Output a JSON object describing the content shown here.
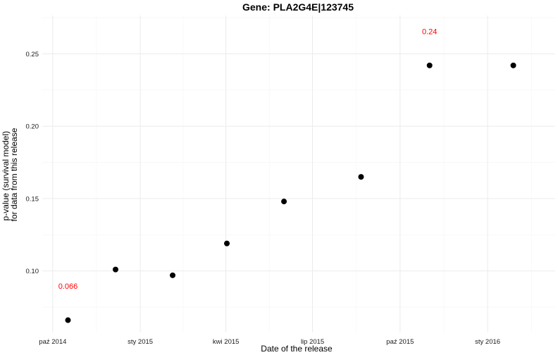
{
  "chart_data": {
    "type": "scatter",
    "title": "Gene: PLA2G4E|123745",
    "xlabel": "Date of the release",
    "ylabel_lines": [
      "p-value (survival model)",
      "for data from this release"
    ],
    "x_scale": "date",
    "xlim": [
      "2014-09-20",
      "2016-03-12"
    ],
    "ylim": [
      0.0575,
      0.2765
    ],
    "x_ticks": [
      {
        "date": "2014-10-01",
        "label": "paź 2014"
      },
      {
        "date": "2015-01-01",
        "label": "sty 2015"
      },
      {
        "date": "2015-04-01",
        "label": "kwi 2015"
      },
      {
        "date": "2015-07-01",
        "label": "lip 2015"
      },
      {
        "date": "2015-10-01",
        "label": "paź 2015"
      },
      {
        "date": "2016-01-01",
        "label": "sty 2016"
      }
    ],
    "y_ticks": [
      {
        "value": 0.1,
        "label": "0.10"
      },
      {
        "value": 0.15,
        "label": "0.15"
      },
      {
        "value": 0.2,
        "label": "0.20"
      },
      {
        "value": 0.25,
        "label": "0.25"
      }
    ],
    "points": [
      {
        "x": "2014-10-17",
        "y": 0.066
      },
      {
        "x": "2014-12-06",
        "y": 0.101
      },
      {
        "x": "2015-02-04",
        "y": 0.097
      },
      {
        "x": "2015-04-02",
        "y": 0.119
      },
      {
        "x": "2015-06-01",
        "y": 0.148
      },
      {
        "x": "2015-08-21",
        "y": 0.165
      },
      {
        "x": "2015-11-01",
        "y": 0.242
      },
      {
        "x": "2016-01-28",
        "y": 0.242
      }
    ],
    "annotations": [
      {
        "text": "0.066",
        "x": "2014-10-17",
        "y": 0.0895,
        "color": "#ff0000"
      },
      {
        "text": "0.24",
        "x": "2015-11-01",
        "y": 0.2655,
        "color": "#ff0000"
      }
    ],
    "point_color": "#000000",
    "grid": true,
    "legend": "none"
  }
}
